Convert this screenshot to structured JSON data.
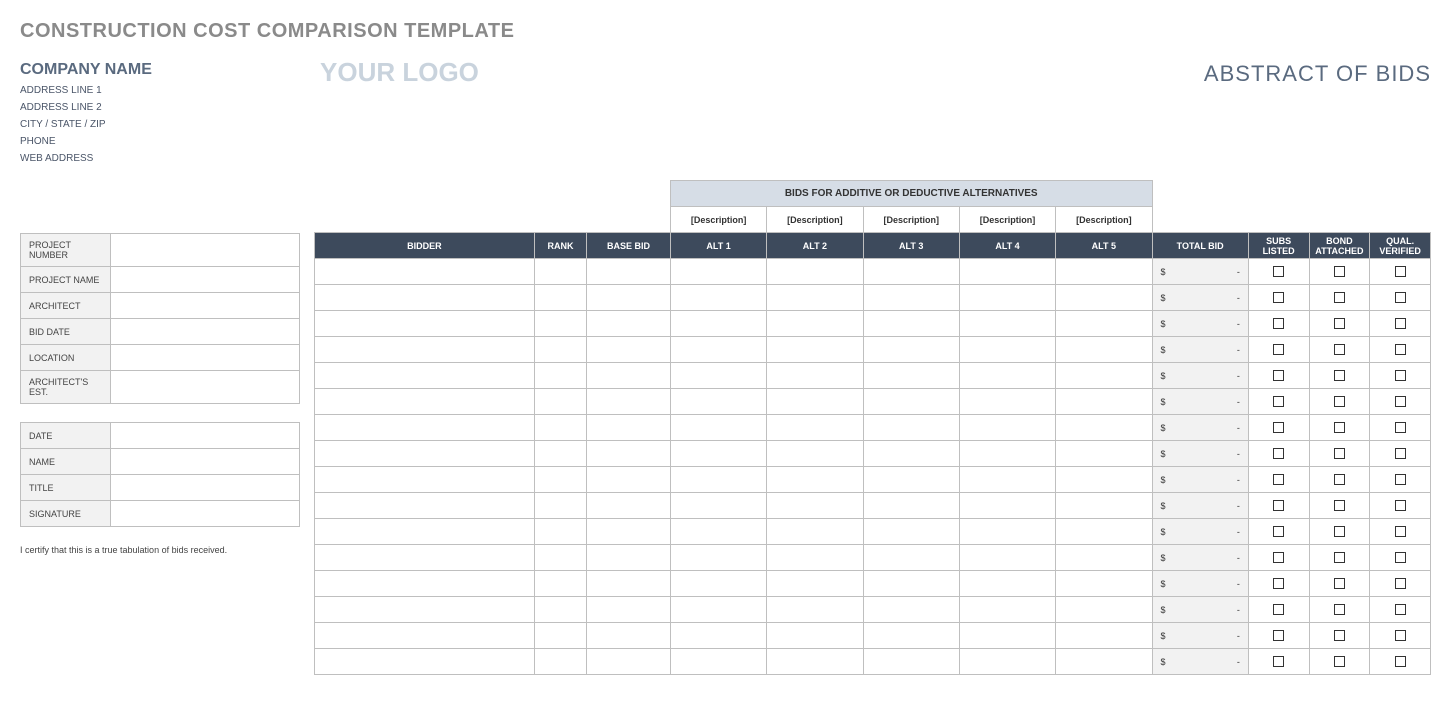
{
  "title": "CONSTRUCTION COST COMPARISON TEMPLATE",
  "company": {
    "name": "COMPANY NAME",
    "address1": "ADDRESS LINE 1",
    "address2": "ADDRESS LINE 2",
    "city_state_zip": "CITY / STATE / ZIP",
    "phone": "PHONE",
    "web": "WEB ADDRESS"
  },
  "logo_text": "YOUR LOGO",
  "abstract_title": "ABSTRACT OF BIDS",
  "project_info_labels": {
    "project_number": "PROJECT NUMBER",
    "project_name": "PROJECT NAME",
    "architect": "ARCHITECT",
    "bid_date": "BID DATE",
    "location": "LOCATION",
    "architects_est": "ARCHITECT'S EST."
  },
  "signoff_labels": {
    "date": "DATE",
    "name": "NAME",
    "title": "TITLE",
    "signature": "SIGNATURE"
  },
  "certify_text": "I certify that this is a true tabulation of bids received.",
  "bids_section_header": "BIDS FOR ADDITIVE OR DEDUCTIVE ALTERNATIVES",
  "alt_descriptions": [
    "[Description]",
    "[Description]",
    "[Description]",
    "[Description]",
    "[Description]"
  ],
  "columns": {
    "bidder": "BIDDER",
    "rank": "RANK",
    "base_bid": "BASE BID",
    "alt1": "ALT 1",
    "alt2": "ALT 2",
    "alt3": "ALT 3",
    "alt4": "ALT 4",
    "alt5": "ALT 5",
    "total_bid": "TOTAL BID",
    "subs_listed": "SUBS LISTED",
    "bond_attached": "BOND ATTACHED",
    "qual_verified": "QUAL. VERIFIED"
  },
  "total_placeholder": {
    "currency": "$",
    "value": "-"
  },
  "row_count": 16,
  "colors": {
    "title_gray": "#8a8a8a",
    "slate_text": "#5a6a7f",
    "logo_gray": "#c9d3dd",
    "header_dark": "#3d4a5c",
    "section_bg": "#d6dde6",
    "cell_gray": "#f2f2f2",
    "border": "#bfbfbf"
  }
}
